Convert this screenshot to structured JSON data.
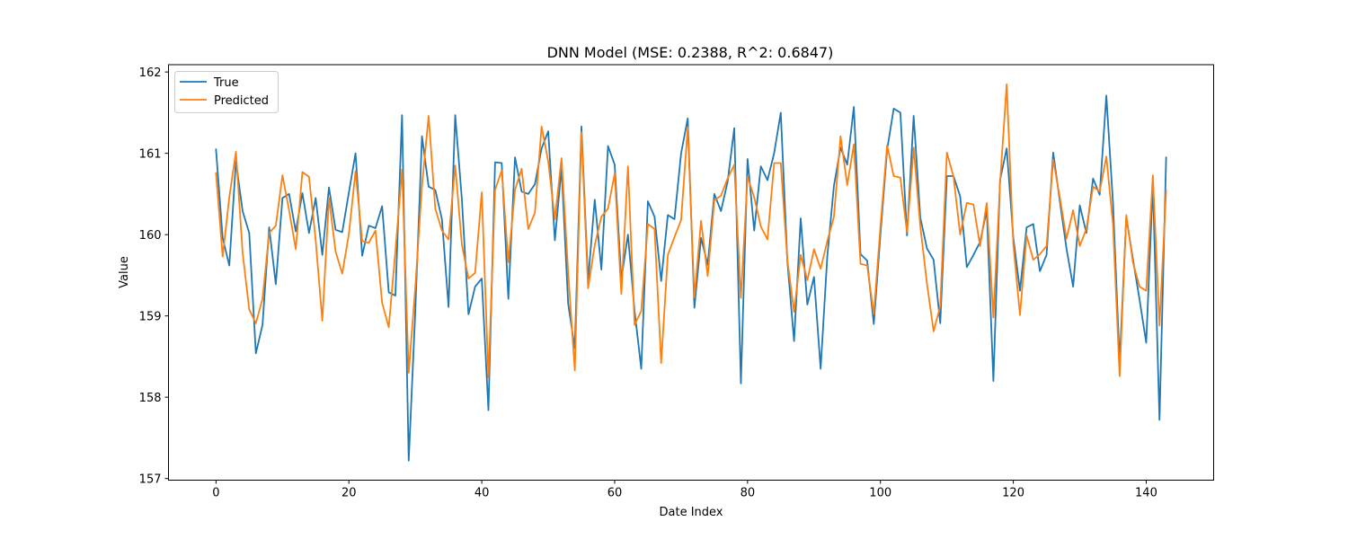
{
  "chart_data": {
    "type": "line",
    "title": "DNN Model (MSE: 0.2388, R^2: 0.6847)",
    "xlabel": "Date Index",
    "ylabel": "Value",
    "xlim": [
      -7.15,
      150.15
    ],
    "ylim": [
      156.98,
      162.09
    ],
    "xticks": [
      0,
      20,
      40,
      60,
      80,
      100,
      120,
      140
    ],
    "yticks": [
      157,
      158,
      159,
      160,
      161,
      162
    ],
    "legend_position": "upper-left",
    "series": [
      {
        "name": "True",
        "color": "#1f77b4",
        "values": [
          161.05,
          159.96,
          159.62,
          160.9,
          160.29,
          160.02,
          158.54,
          158.89,
          160.09,
          159.39,
          160.45,
          160.5,
          160.04,
          160.51,
          160.02,
          160.45,
          159.75,
          160.58,
          160.06,
          160.03,
          160.52,
          161.0,
          159.74,
          160.11,
          160.08,
          160.35,
          159.29,
          159.25,
          161.47,
          157.22,
          159.07,
          161.21,
          160.59,
          160.55,
          160.19,
          159.11,
          161.47,
          160.44,
          159.02,
          159.36,
          159.46,
          157.84,
          160.89,
          160.88,
          159.21,
          160.95,
          160.53,
          160.5,
          160.62,
          161.06,
          161.27,
          159.93,
          160.82,
          159.15,
          158.6,
          161.33,
          159.43,
          160.43,
          159.57,
          161.09,
          160.86,
          159.45,
          160.0,
          159.06,
          158.35,
          160.41,
          160.22,
          159.43,
          160.24,
          160.19,
          161.0,
          161.43,
          159.1,
          159.96,
          159.63,
          160.5,
          160.29,
          160.65,
          161.31,
          158.17,
          160.93,
          160.05,
          160.84,
          160.67,
          161.0,
          161.5,
          159.66,
          158.69,
          160.2,
          159.14,
          159.48,
          158.35,
          159.73,
          160.6,
          161.07,
          160.86,
          161.57,
          159.76,
          159.68,
          158.9,
          160.0,
          161.04,
          161.55,
          161.5,
          159.99,
          161.46,
          160.21,
          159.83,
          159.69,
          158.91,
          160.72,
          160.72,
          160.47,
          159.6,
          159.75,
          159.91,
          160.3,
          158.2,
          160.67,
          161.06,
          159.96,
          159.31,
          160.09,
          160.13,
          159.55,
          159.75,
          161.01,
          160.41,
          159.83,
          159.36,
          160.36,
          160.02,
          160.69,
          160.49,
          161.71,
          160.39,
          158.43,
          160.21,
          159.7,
          159.2,
          158.67,
          160.62,
          157.72,
          160.95
        ]
      },
      {
        "name": "Predicted",
        "color": "#ff7f0e",
        "values": [
          160.76,
          159.73,
          160.46,
          161.02,
          159.78,
          159.08,
          158.91,
          159.21,
          160.02,
          160.11,
          160.73,
          160.3,
          159.82,
          160.77,
          160.71,
          159.93,
          158.94,
          160.45,
          159.79,
          159.52,
          160.01,
          160.78,
          159.92,
          159.9,
          160.05,
          159.16,
          158.86,
          159.8,
          160.8,
          158.3,
          159.36,
          160.6,
          161.46,
          160.32,
          160.05,
          159.94,
          160.85,
          159.88,
          159.46,
          159.53,
          160.52,
          158.24,
          160.55,
          160.79,
          159.66,
          160.55,
          160.81,
          160.07,
          160.27,
          161.33,
          160.9,
          160.19,
          160.94,
          159.54,
          158.33,
          161.26,
          159.34,
          159.87,
          160.22,
          160.32,
          160.75,
          159.27,
          160.84,
          158.89,
          159.06,
          160.13,
          160.07,
          158.42,
          159.75,
          159.97,
          160.18,
          161.32,
          159.23,
          160.17,
          159.49,
          160.42,
          160.48,
          160.69,
          160.86,
          159.22,
          160.71,
          160.46,
          160.1,
          159.94,
          160.88,
          160.88,
          159.68,
          159.05,
          159.75,
          159.44,
          159.82,
          159.58,
          159.92,
          160.22,
          161.21,
          160.61,
          161.11,
          159.64,
          159.62,
          159.02,
          160.1,
          161.1,
          160.72,
          160.7,
          160.03,
          161.07,
          160.1,
          159.4,
          158.81,
          159.12,
          161.01,
          160.71,
          160.0,
          160.39,
          160.37,
          159.86,
          160.39,
          158.98,
          160.63,
          161.85,
          159.88,
          159.01,
          159.99,
          159.69,
          159.76,
          159.86,
          160.92,
          160.46,
          159.95,
          160.3,
          159.86,
          160.07,
          160.59,
          160.53,
          160.96,
          160.13,
          158.26,
          160.24,
          159.66,
          159.36,
          159.31,
          160.73,
          158.88,
          160.55
        ]
      }
    ]
  }
}
